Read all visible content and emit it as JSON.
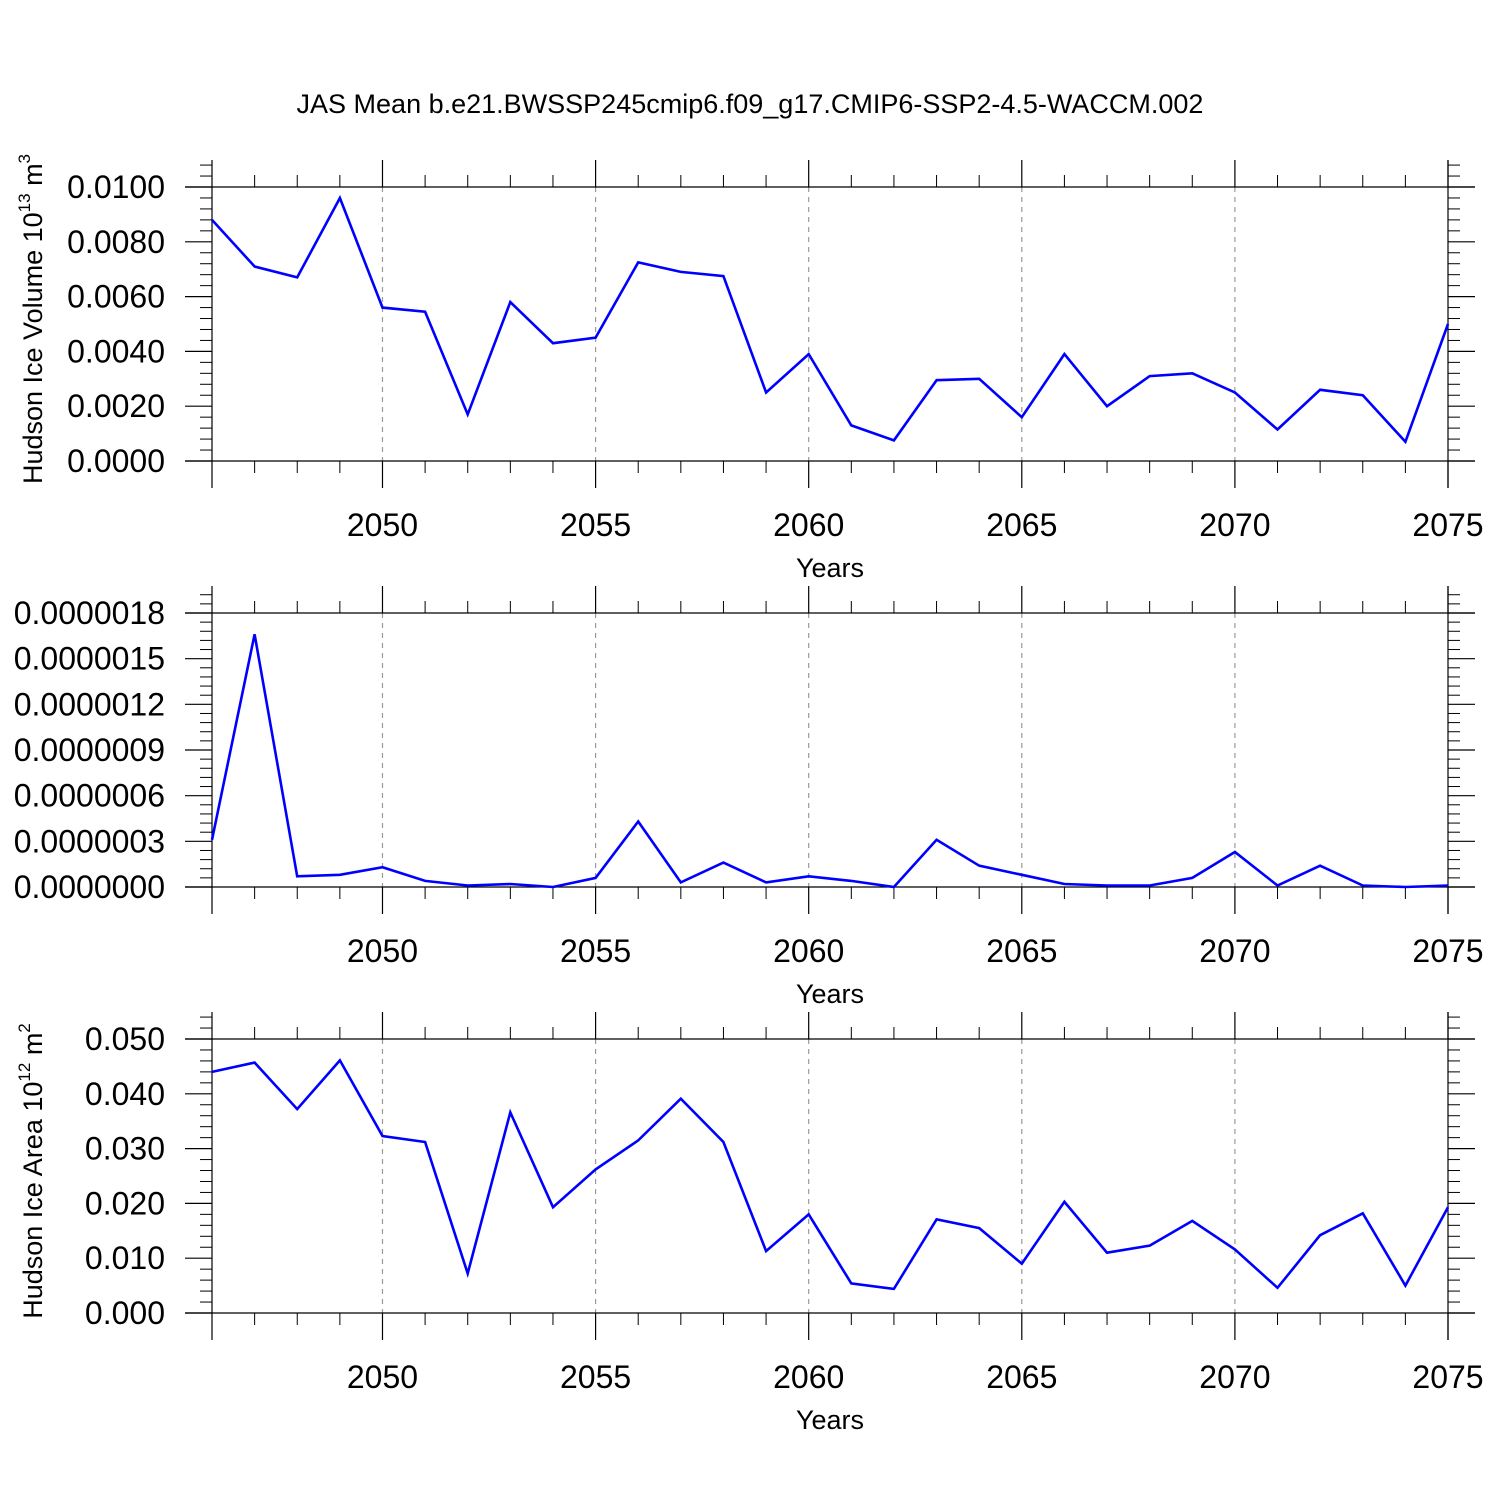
{
  "title": "JAS Mean b.e21.BWSSP245cmip6.f09_g17.CMIP6-SSP2-4.5-WACCM.002",
  "series_color": "#0000ff",
  "chart_data": [
    {
      "type": "line",
      "title": "JAS Mean b.e21.BWSSP245cmip6.f09_g17.CMIP6-SSP2-4.5-WACCM.002",
      "ylabel_main": "Hudson Ice Volume 10",
      "ylabel_exp": "13",
      "ylabel_unit": " m",
      "ylabel_unit_exp": "3",
      "xlabel": "Years",
      "xlim": [
        2046,
        2075
      ],
      "ylim": [
        0,
        0.01
      ],
      "yticks": [
        "0.0000",
        "0.0020",
        "0.0040",
        "0.0060",
        "0.0080",
        "0.0100"
      ],
      "ytick_values": [
        0,
        0.002,
        0.004,
        0.006,
        0.008,
        0.01
      ],
      "xticks": [
        2050,
        2055,
        2060,
        2065,
        2070,
        2075
      ],
      "grid": "dashed vertical at x ticks",
      "x": [
        2046,
        2047,
        2048,
        2049,
        2050,
        2051,
        2052,
        2053,
        2054,
        2055,
        2056,
        2057,
        2058,
        2059,
        2060,
        2061,
        2062,
        2063,
        2064,
        2065,
        2066,
        2067,
        2068,
        2069,
        2070,
        2071,
        2072,
        2073,
        2074,
        2075
      ],
      "values": [
        0.0088,
        0.0071,
        0.0067,
        0.0096,
        0.0056,
        0.00545,
        0.0017,
        0.0058,
        0.0043,
        0.0045,
        0.00725,
        0.0069,
        0.00675,
        0.0025,
        0.0039,
        0.0013,
        0.00075,
        0.00295,
        0.003,
        0.0016,
        0.0039,
        0.002,
        0.0031,
        0.0032,
        0.0025,
        0.00115,
        0.0026,
        0.0024,
        0.0007,
        0.005
      ]
    },
    {
      "type": "line",
      "ylabel_main": "",
      "xlabel": "Years",
      "xlim": [
        2046,
        2075
      ],
      "ylim": [
        0,
        1.8e-06
      ],
      "yticks": [
        "0.0000000",
        "0.0000003",
        "0.0000006",
        "0.0000009",
        "0.0000012",
        "0.0000015",
        "0.0000018"
      ],
      "ytick_values": [
        0,
        3e-07,
        6e-07,
        9e-07,
        1.2e-06,
        1.5e-06,
        1.8e-06
      ],
      "xticks": [
        2050,
        2055,
        2060,
        2065,
        2070,
        2075
      ],
      "grid": "dashed vertical at x ticks",
      "x": [
        2046,
        2047,
        2048,
        2049,
        2050,
        2051,
        2052,
        2053,
        2054,
        2055,
        2056,
        2057,
        2058,
        2059,
        2060,
        2061,
        2062,
        2063,
        2064,
        2065,
        2066,
        2067,
        2068,
        2069,
        2070,
        2071,
        2072,
        2073,
        2074,
        2075
      ],
      "values": [
        3.1e-07,
        1.66e-06,
        7e-08,
        8e-08,
        1.3e-07,
        4e-08,
        1e-08,
        2e-08,
        0.0,
        6e-08,
        4.3e-07,
        3e-08,
        1.6e-07,
        3e-08,
        7e-08,
        4e-08,
        0.0,
        3.1e-07,
        1.4e-07,
        8e-08,
        2e-08,
        1e-08,
        1e-08,
        6e-08,
        2.3e-07,
        1e-08,
        1.4e-07,
        1e-08,
        0.0,
        1e-08
      ]
    },
    {
      "type": "line",
      "ylabel_main": "Hudson Ice Area 10",
      "ylabel_exp": "12",
      "ylabel_unit": " m",
      "ylabel_unit_exp": "2",
      "xlabel": "Years",
      "xlim": [
        2046,
        2075
      ],
      "ylim": [
        0,
        0.05
      ],
      "yticks": [
        "0.000",
        "0.010",
        "0.020",
        "0.030",
        "0.040",
        "0.050"
      ],
      "ytick_values": [
        0,
        0.01,
        0.02,
        0.03,
        0.04,
        0.05
      ],
      "xticks": [
        2050,
        2055,
        2060,
        2065,
        2070,
        2075
      ],
      "grid": "dashed vertical at x ticks",
      "x": [
        2046,
        2047,
        2048,
        2049,
        2050,
        2051,
        2052,
        2053,
        2054,
        2055,
        2056,
        2057,
        2058,
        2059,
        2060,
        2061,
        2062,
        2063,
        2064,
        2065,
        2066,
        2067,
        2068,
        2069,
        2070,
        2071,
        2072,
        2073,
        2074,
        2075
      ],
      "values": [
        0.044,
        0.0457,
        0.0372,
        0.0461,
        0.0323,
        0.0312,
        0.0072,
        0.0366,
        0.0193,
        0.0262,
        0.0315,
        0.0391,
        0.0312,
        0.0113,
        0.018,
        0.0054,
        0.0044,
        0.0171,
        0.0155,
        0.009,
        0.0203,
        0.011,
        0.0123,
        0.0168,
        0.0116,
        0.0046,
        0.0142,
        0.0182,
        0.005,
        0.0193
      ]
    }
  ]
}
